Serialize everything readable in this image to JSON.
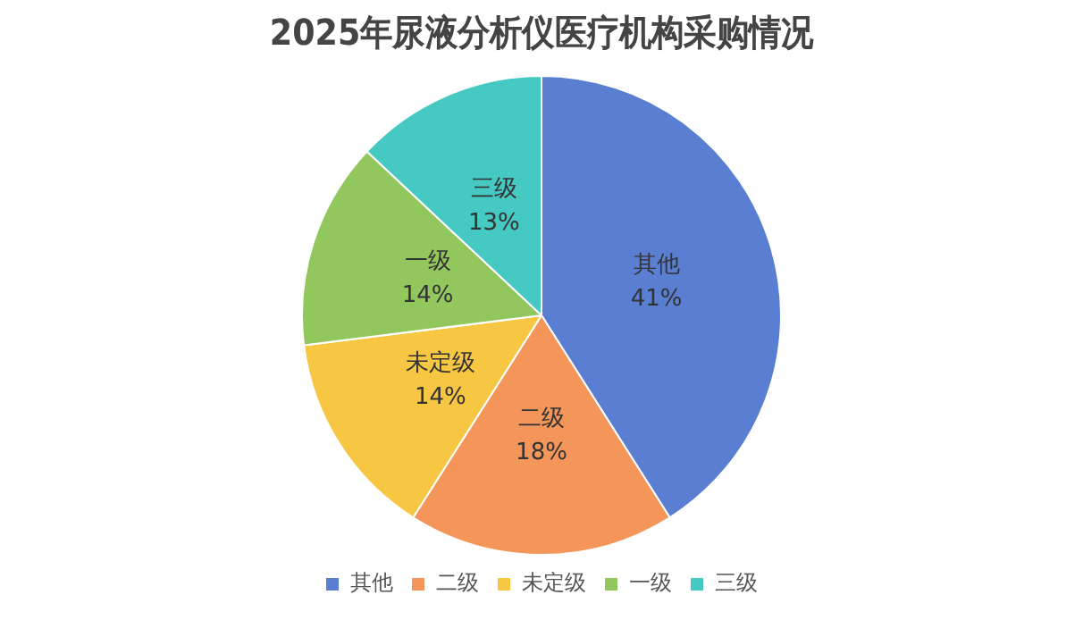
{
  "chart_data": {
    "type": "pie",
    "title": "2025年尿液分析仪医疗机构采购情况",
    "categories": [
      "其他",
      "二级",
      "未定级",
      "一级",
      "三级"
    ],
    "values": [
      41,
      18,
      14,
      14,
      13
    ],
    "colors": [
      "#5a7fd2",
      "#f4955a",
      "#f7c744",
      "#92c75e",
      "#45c9c2"
    ],
    "value_labels": [
      "41%",
      "18%",
      "14%",
      "14%",
      "13%"
    ],
    "legend": "bottom"
  }
}
